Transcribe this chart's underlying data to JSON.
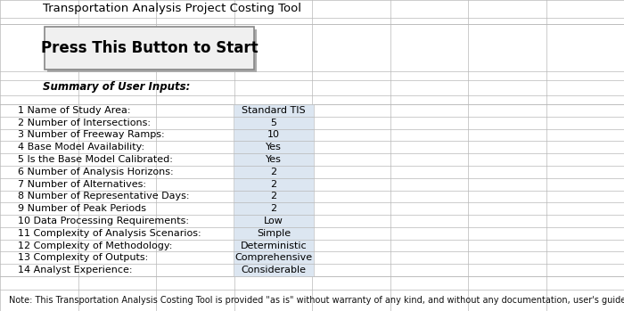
{
  "title": "Transportation Analysis Project Costing Tool",
  "button_text": "Press This Button to Start",
  "summary_label": "Summary of User Inputs:",
  "rows": [
    [
      "1 Name of Study Area:",
      "Standard TIS"
    ],
    [
      "2 Number of Intersections:",
      "5"
    ],
    [
      "3 Number of Freeway Ramps:",
      "10"
    ],
    [
      "4 Base Model Availability:",
      "Yes"
    ],
    [
      "5 Is the Base Model Calibrated:",
      "Yes"
    ],
    [
      "6 Number of Analysis Horizons:",
      "2"
    ],
    [
      "7 Number of Alternatives:",
      "2"
    ],
    [
      "8 Number of Representative Days:",
      "2"
    ],
    [
      "9 Number of Peak Periods",
      "2"
    ],
    [
      "10 Data Processing Requirements:",
      "Low"
    ],
    [
      "11 Complexity of Analysis Scenarios:",
      "Simple"
    ],
    [
      "12 Complexity of Methodology:",
      "Deterministic"
    ],
    [
      "13 Complexity of Outputs:",
      "Comprehensive"
    ],
    [
      "14 Analyst Experience:",
      "Considerable"
    ]
  ],
  "note_text": "Note: This Transportation Analysis Costing Tool is provided \"as is\" without warranty of any kind, and without any documentation, user's guide, or ma",
  "bg_color": "#ffffff",
  "grid_color": "#b8b8b8",
  "cell_bg": "#dce6f1",
  "button_bg": "#f0f0f0",
  "button_shadow": "#aaaaaa",
  "button_border": "#888888",
  "title_fontsize": 9.5,
  "button_fontsize": 12,
  "summary_fontsize": 8.5,
  "row_fontsize": 8,
  "note_fontsize": 7,
  "fig_w": 7.0,
  "fig_h": 3.49,
  "dpi": 100
}
